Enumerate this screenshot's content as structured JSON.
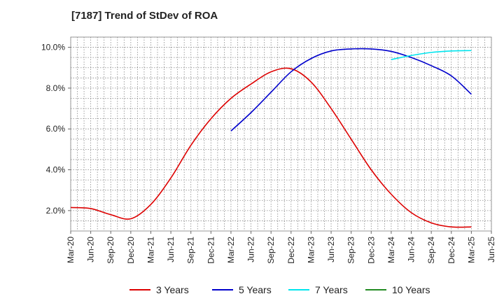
{
  "chart_data": {
    "type": "line",
    "title": "[7187]  Trend of StDev of ROA",
    "xlabel": "",
    "ylabel": "",
    "ylim": [
      1.0,
      10.5
    ],
    "yticks": [
      2.0,
      4.0,
      6.0,
      8.0,
      10.0
    ],
    "ytick_labels": [
      "2.0%",
      "4.0%",
      "6.0%",
      "8.0%",
      "10.0%"
    ],
    "categories": [
      "Mar-20",
      "Jun-20",
      "Sep-20",
      "Dec-20",
      "Mar-21",
      "Jun-21",
      "Sep-21",
      "Dec-21",
      "Mar-22",
      "Jun-22",
      "Sep-22",
      "Dec-22",
      "Mar-23",
      "Jun-23",
      "Sep-23",
      "Dec-23",
      "Mar-24",
      "Jun-24",
      "Sep-24",
      "Dec-24",
      "Mar-25",
      "Jun-25"
    ],
    "grid": true,
    "legend_position": "bottom",
    "series": [
      {
        "name": "3 Years",
        "color": "#dd0000",
        "values": [
          2.15,
          2.1,
          1.8,
          1.6,
          2.3,
          3.6,
          5.2,
          6.5,
          7.5,
          8.2,
          8.8,
          8.95,
          8.3,
          7.0,
          5.5,
          4.0,
          2.8,
          1.9,
          1.4,
          1.2,
          1.2,
          null
        ]
      },
      {
        "name": "5 Years",
        "color": "#0000cc",
        "values": [
          null,
          null,
          null,
          null,
          null,
          null,
          null,
          null,
          5.9,
          6.8,
          7.8,
          8.8,
          9.45,
          9.82,
          9.92,
          9.92,
          9.8,
          9.5,
          9.1,
          8.6,
          7.7,
          null
        ]
      },
      {
        "name": "7 Years",
        "color": "#00e5ee",
        "values": [
          null,
          null,
          null,
          null,
          null,
          null,
          null,
          null,
          null,
          null,
          null,
          null,
          null,
          null,
          null,
          null,
          9.4,
          9.6,
          9.75,
          9.82,
          9.84,
          null
        ]
      },
      {
        "name": "10 Years",
        "color": "#228b22",
        "values": [
          null,
          null,
          null,
          null,
          null,
          null,
          null,
          null,
          null,
          null,
          null,
          null,
          null,
          null,
          null,
          null,
          null,
          null,
          null,
          null,
          null,
          null
        ]
      }
    ]
  }
}
